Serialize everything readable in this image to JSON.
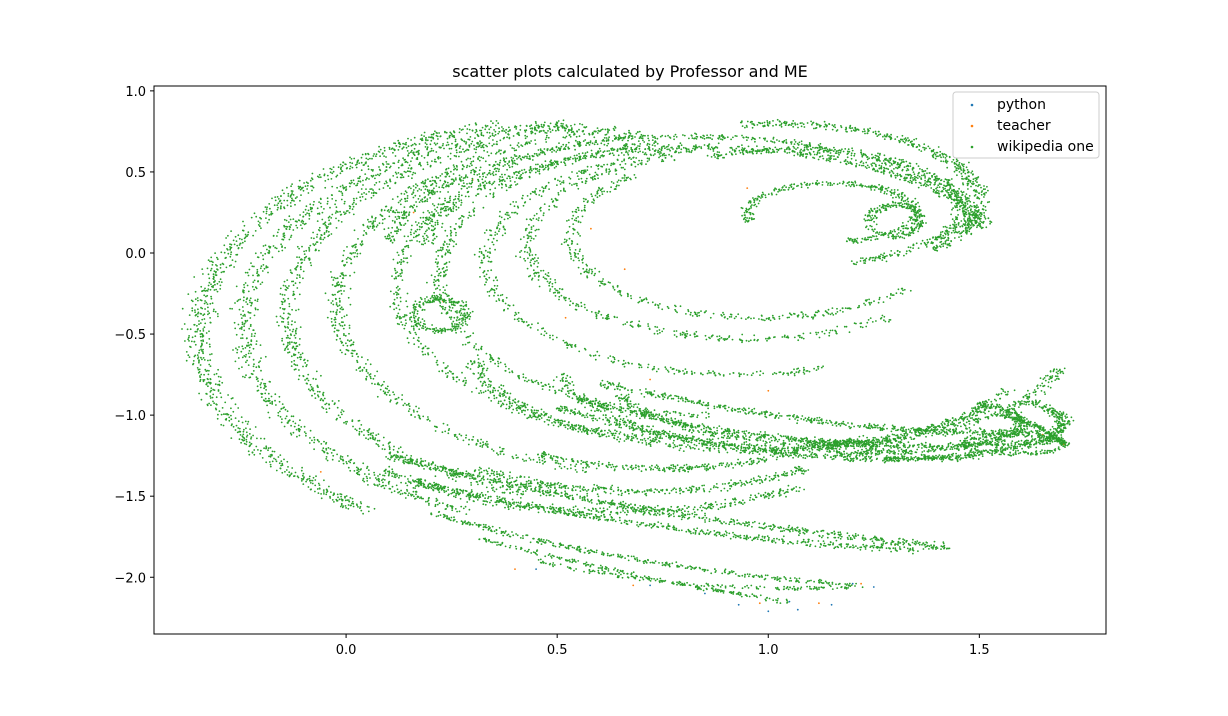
{
  "chart_data": {
    "type": "scatter",
    "title": "scatter plots calculated by Professor and ME",
    "xlabel": "",
    "ylabel": "",
    "xlim": [
      -0.455,
      1.8
    ],
    "ylim": [
      -2.35,
      1.03
    ],
    "x_ticks": [
      0.0,
      0.5,
      1.0,
      1.5
    ],
    "x_tick_labels": [
      "0.0",
      "0.5",
      "1.0",
      "1.5"
    ],
    "y_ticks": [
      1.0,
      0.5,
      0.0,
      -0.5,
      -1.0,
      -1.5,
      -2.0
    ],
    "y_tick_labels": [
      "1.0",
      "0.5",
      "0.0",
      "−0.5",
      "−1.0",
      "−1.5",
      "−2.0"
    ],
    "grid": false,
    "legend_position": "top-right",
    "series": [
      {
        "name": "python",
        "color": "#1f77b4",
        "points": [
          [
            0.45,
            -1.95
          ],
          [
            0.72,
            -2.05
          ],
          [
            0.93,
            -2.17
          ],
          [
            1.0,
            -2.21
          ],
          [
            1.07,
            -2.2
          ],
          [
            1.15,
            -2.17
          ],
          [
            1.25,
            -2.06
          ],
          [
            1.05,
            -2.15
          ],
          [
            1.2,
            -2.04
          ],
          [
            0.85,
            -2.1
          ]
        ]
      },
      {
        "name": "teacher",
        "color": "#ff7f0e",
        "points": [
          [
            -0.06,
            -1.35
          ],
          [
            0.4,
            -1.95
          ],
          [
            0.68,
            -2.05
          ],
          [
            0.98,
            -2.16
          ],
          [
            1.12,
            -2.16
          ],
          [
            1.22,
            -2.04
          ],
          [
            1.3,
            -1.8
          ],
          [
            1.7,
            -1.18
          ],
          [
            1.65,
            -1.12
          ],
          [
            0.58,
            0.15
          ],
          [
            0.72,
            -0.78
          ],
          [
            0.3,
            0.45
          ],
          [
            0.52,
            -0.4
          ],
          [
            1.0,
            -0.85
          ],
          [
            0.23,
            -0.3
          ],
          [
            0.16,
            0.25
          ],
          [
            0.66,
            -0.1
          ],
          [
            0.95,
            0.4
          ]
        ]
      },
      {
        "name": "wikipedia one",
        "color": "#2ca02c",
        "arcs": [
          {
            "cx": 0.62,
            "cy": -0.5,
            "rx": 0.97,
            "ry": 1.34,
            "a0": 105,
            "a1": 235,
            "spread": 0.05,
            "n": 900
          },
          {
            "cx": 0.68,
            "cy": -0.45,
            "rx": 0.92,
            "ry": 1.27,
            "a0": 100,
            "a1": 245,
            "spread": 0.045,
            "n": 800
          },
          {
            "cx": 0.72,
            "cy": -0.38,
            "rx": 0.86,
            "ry": 1.18,
            "a0": 100,
            "a1": 250,
            "spread": 0.04,
            "n": 700
          },
          {
            "cx": 0.78,
            "cy": -0.3,
            "rx": 0.8,
            "ry": 1.08,
            "a0": 100,
            "a1": 255,
            "spread": 0.035,
            "n": 600
          },
          {
            "cx": 0.82,
            "cy": -0.2,
            "rx": 0.7,
            "ry": 0.95,
            "a0": 100,
            "a1": 265,
            "spread": 0.03,
            "n": 500
          },
          {
            "cx": 0.86,
            "cy": -0.15,
            "rx": 0.64,
            "ry": 0.85,
            "a0": 100,
            "a1": 270,
            "spread": 0.03,
            "n": 450
          },
          {
            "cx": 0.64,
            "cy": -0.45,
            "rx": 0.88,
            "ry": 1.15,
            "a0": 230,
            "a1": 300,
            "spread": 0.04,
            "n": 420
          },
          {
            "cx": 0.7,
            "cy": -0.42,
            "rx": 0.78,
            "ry": 1.05,
            "a0": 240,
            "a1": 300,
            "spread": 0.035,
            "n": 350
          },
          {
            "cx": 0.75,
            "cy": -0.38,
            "rx": 0.7,
            "ry": 0.95,
            "a0": 245,
            "a1": 305,
            "spread": 0.03,
            "n": 300
          },
          {
            "cx": 0.93,
            "cy": -0.05,
            "rx": 0.6,
            "ry": 0.7,
            "a0": 100,
            "a1": 290,
            "spread": 0.03,
            "n": 420
          },
          {
            "cx": 0.95,
            "cy": 0.05,
            "rx": 0.52,
            "ry": 0.58,
            "a0": 110,
            "a1": 310,
            "spread": 0.035,
            "n": 420
          },
          {
            "cx": 0.98,
            "cy": 0.1,
            "rx": 0.45,
            "ry": 0.5,
            "a0": 130,
            "a1": 320,
            "spread": 0.03,
            "n": 350
          },
          {
            "cx": 1.0,
            "cy": -0.6,
            "rx": 0.7,
            "ry": 0.62,
            "a0": 185,
            "a1": 350,
            "spread": 0.035,
            "n": 600
          },
          {
            "cx": 1.05,
            "cy": -0.65,
            "rx": 0.55,
            "ry": 0.55,
            "a0": 190,
            "a1": 340,
            "spread": 0.03,
            "n": 450
          },
          {
            "cx": 1.1,
            "cy": -0.72,
            "rx": 0.48,
            "ry": 0.45,
            "a0": 200,
            "a1": 330,
            "spread": 0.03,
            "n": 350
          },
          {
            "cx": 0.85,
            "cy": 0.05,
            "rx": 0.66,
            "ry": 0.6,
            "a0": 10,
            "a1": 180,
            "spread": 0.035,
            "n": 700
          },
          {
            "cx": 0.82,
            "cy": 0.0,
            "rx": 0.72,
            "ry": 0.72,
            "a0": 15,
            "a1": 175,
            "spread": 0.03,
            "n": 600
          },
          {
            "cx": 1.02,
            "cy": 0.32,
            "rx": 0.48,
            "ry": 0.48,
            "a0": -40,
            "a1": 100,
            "spread": 0.035,
            "n": 500
          },
          {
            "cx": 1.06,
            "cy": 0.28,
            "rx": 0.4,
            "ry": 0.36,
            "a0": -70,
            "a1": 120,
            "spread": 0.03,
            "n": 450
          },
          {
            "cx": 1.15,
            "cy": 0.25,
            "rx": 0.2,
            "ry": 0.18,
            "a0": -80,
            "a1": 200,
            "spread": 0.025,
            "n": 350
          },
          {
            "cx": 1.3,
            "cy": 0.2,
            "rx": 0.06,
            "ry": 0.1,
            "a0": 0,
            "a1": 360,
            "spread": 0.025,
            "n": 220
          },
          {
            "cx": 1.28,
            "cy": -1.05,
            "rx": 0.42,
            "ry": 0.22,
            "a0": -90,
            "a1": 40,
            "spread": 0.03,
            "n": 420
          },
          {
            "cx": 1.25,
            "cy": -1.05,
            "rx": 0.35,
            "ry": 0.18,
            "a0": -95,
            "a1": 45,
            "spread": 0.025,
            "n": 380
          },
          {
            "cx": 1.58,
            "cy": -1.18,
            "rx": 0.12,
            "ry": 0.06,
            "a0": 0,
            "a1": 360,
            "spread": 0.02,
            "n": 220
          },
          {
            "cx": 1.2,
            "cy": -1.2,
            "rx": 0.05,
            "ry": 0.04,
            "a0": 0,
            "a1": 360,
            "spread": 0.02,
            "n": 150
          },
          {
            "cx": 0.22,
            "cy": -0.38,
            "rx": 0.06,
            "ry": 0.1,
            "a0": 0,
            "a1": 360,
            "spread": 0.03,
            "n": 260
          }
        ],
        "curves": [
          {
            "from": [
              0.1,
              -1.25
            ],
            "via": [
              0.6,
              -1.6
            ],
            "to": [
              1.44,
              -1.82
            ],
            "spread": 0.035,
            "n": 700
          },
          {
            "from": [
              0.15,
              -1.4
            ],
            "via": [
              0.7,
              -1.75
            ],
            "to": [
              1.35,
              -1.83
            ],
            "spread": 0.03,
            "n": 500
          },
          {
            "from": [
              0.2,
              -1.6
            ],
            "via": [
              0.65,
              -1.95
            ],
            "to": [
              1.22,
              -2.05
            ],
            "spread": 0.025,
            "n": 350
          },
          {
            "from": [
              0.3,
              -1.75
            ],
            "via": [
              0.75,
              -2.05
            ],
            "to": [
              1.05,
              -2.15
            ],
            "spread": 0.02,
            "n": 220
          },
          {
            "from": [
              0.45,
              -1.9
            ],
            "via": [
              0.8,
              -2.1
            ],
            "to": [
              1.2,
              -2.06
            ],
            "spread": 0.02,
            "n": 160
          },
          {
            "from": [
              0.55,
              -0.9
            ],
            "via": [
              1.1,
              -1.3
            ],
            "to": [
              1.7,
              -1.15
            ],
            "spread": 0.03,
            "n": 600
          },
          {
            "from": [
              0.6,
              -0.8
            ],
            "via": [
              1.2,
              -1.15
            ],
            "to": [
              1.65,
              -1.1
            ],
            "spread": 0.03,
            "n": 500
          },
          {
            "from": [
              0.5,
              -0.95
            ],
            "via": [
              1.0,
              -1.35
            ],
            "to": [
              1.5,
              -1.25
            ],
            "spread": 0.03,
            "n": 500
          },
          {
            "from": [
              1.55,
              -1.0
            ],
            "via": [
              1.65,
              -1.05
            ],
            "to": [
              1.7,
              -1.18
            ],
            "spread": 0.02,
            "n": 150
          }
        ]
      }
    ]
  }
}
